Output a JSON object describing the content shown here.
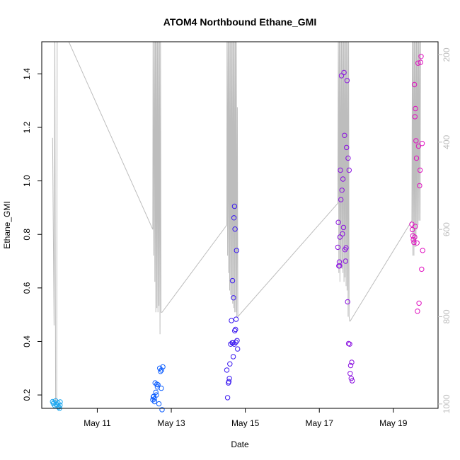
{
  "chart_data": {
    "type": "scatter",
    "title": "ATOM4 Northbound Ethane_GMI",
    "xlabel": "Date",
    "ylabel": "Ethane_GMI",
    "x_ticks": [
      "May 11",
      "May 13",
      "May 15",
      "May 17",
      "May 19"
    ],
    "y_ticks": [
      "0.2",
      "0.4",
      "0.6",
      "0.8",
      "1.0",
      "1.2",
      "1.4"
    ],
    "y2_ticks": [
      "200",
      "400",
      "600",
      "800",
      "1000"
    ],
    "y_left_range": [
      0.15,
      1.52
    ],
    "y_right_range": [
      1010,
      170
    ],
    "y_right_inverted": true,
    "x_range_days": [
      "May 09 12:00",
      "May 20 05:00"
    ],
    "grid": false,
    "point_style": "open-circle",
    "point_color_scale": [
      "#1ea8f0",
      "#1060ff",
      "#3a18f0",
      "#8a10e0",
      "#e010c0"
    ],
    "secondary_line_color": "#bdbdbd",
    "series": [
      {
        "flight_date": "May 10",
        "color": "#1ea8f0",
        "points": [
          [
            "May 09 19:00",
            0.175
          ],
          [
            "May 09 19:30",
            0.168
          ],
          [
            "May 09 20:00",
            0.172
          ],
          [
            "May 09 20:30",
            0.16
          ],
          [
            "May 09 21:00",
            0.178
          ],
          [
            "May 09 21:30",
            0.165
          ],
          [
            "May 09 22:00",
            0.158
          ],
          [
            "May 09 22:30",
            0.17
          ],
          [
            "May 09 23:00",
            0.155
          ],
          [
            "May 09 23:30",
            0.15
          ],
          [
            "May 09 23:50",
            0.162
          ],
          [
            "May 09 23:55",
            0.174
          ]
        ]
      },
      {
        "flight_date": "May 12",
        "color": "#1060ff",
        "points": [
          [
            "May 12 12:00",
            0.182
          ],
          [
            "May 12 12:20",
            0.193
          ],
          [
            "May 12 12:40",
            0.195
          ],
          [
            "May 12 13:00",
            0.185
          ],
          [
            "May 12 13:10",
            0.175
          ],
          [
            "May 12 13:30",
            0.245
          ],
          [
            "May 12 14:00",
            0.21
          ],
          [
            "May 12 14:20",
            0.2
          ],
          [
            "May 12 14:40",
            0.24
          ],
          [
            "May 12 15:00",
            0.23
          ],
          [
            "May 12 15:20",
            0.238
          ],
          [
            "May 12 16:00",
            0.167
          ],
          [
            "May 12 16:30",
            0.3
          ],
          [
            "May 12 17:00",
            0.288
          ],
          [
            "May 12 17:30",
            0.225
          ],
          [
            "May 12 18:00",
            0.145
          ],
          [
            "May 12 18:30",
            0.305
          ],
          [
            "May 12 17:40",
            0.293
          ]
        ]
      },
      {
        "flight_date": "May 14",
        "color": "#3a18f0",
        "points": [
          [
            "May 14 12:00",
            0.293
          ],
          [
            "May 14 12:30",
            0.19
          ],
          [
            "May 14 13:00",
            0.245
          ],
          [
            "May 14 13:20",
            0.25
          ],
          [
            "May 14 13:40",
            0.262
          ],
          [
            "May 14 14:00",
            0.316
          ],
          [
            "May 14 14:30",
            0.39
          ],
          [
            "May 14 15:00",
            0.478
          ],
          [
            "May 14 15:30",
            0.395
          ],
          [
            "May 14 16:00",
            0.395
          ],
          [
            "May 14 16:20",
            0.563
          ],
          [
            "May 14 16:40",
            0.862
          ],
          [
            "May 14 17:00",
            0.905
          ],
          [
            "May 14 17:20",
            0.82
          ],
          [
            "May 14 15:40",
            0.627
          ],
          [
            "May 14 17:40",
            0.445
          ],
          [
            "May 14 18:00",
            0.483
          ],
          [
            "May 14 18:20",
            0.74
          ],
          [
            "May 14 18:40",
            0.403
          ],
          [
            "May 14 19:00",
            0.372
          ],
          [
            "May 14 16:10",
            0.343
          ],
          [
            "May 14 16:50",
            0.39
          ],
          [
            "May 14 17:10",
            0.44
          ],
          [
            "May 14 17:50",
            0.397
          ]
        ]
      },
      {
        "flight_date": "May 17",
        "color": "#8a10e0",
        "points": [
          [
            "May 17 12:00",
            0.752
          ],
          [
            "May 17 12:20",
            0.845
          ],
          [
            "May 17 12:40",
            0.682
          ],
          [
            "May 17 13:00",
            0.697
          ],
          [
            "May 17 13:20",
            0.79
          ],
          [
            "May 17 13:40",
            1.04
          ],
          [
            "May 17 14:00",
            0.93
          ],
          [
            "May 17 14:20",
            1.393
          ],
          [
            "May 17 14:40",
            0.965
          ],
          [
            "May 17 15:00",
            0.802
          ],
          [
            "May 17 15:20",
            1.007
          ],
          [
            "May 17 15:40",
            0.826
          ],
          [
            "May 17 16:00",
            1.405
          ],
          [
            "May 17 16:20",
            1.17
          ],
          [
            "May 17 16:40",
            0.743
          ],
          [
            "May 17 17:00",
            0.7
          ],
          [
            "May 17 17:20",
            0.75
          ],
          [
            "May 17 17:40",
            1.125
          ],
          [
            "May 17 18:00",
            1.375
          ],
          [
            "May 17 18:20",
            0.548
          ],
          [
            "May 17 18:40",
            1.085
          ],
          [
            "May 17 19:00",
            0.392
          ],
          [
            "May 17 19:20",
            1.04
          ],
          [
            "May 17 19:40",
            0.39
          ],
          [
            "May 17 20:00",
            0.28
          ],
          [
            "May 17 20:20",
            0.31
          ],
          [
            "May 17 20:40",
            0.262
          ],
          [
            "May 17 21:00",
            0.322
          ],
          [
            "May 17 21:20",
            0.253
          ],
          [
            "May 17 13:10",
            0.682
          ]
        ]
      },
      {
        "flight_date": "May 19",
        "color": "#e010c0",
        "points": [
          [
            "May 19 12:00",
            0.838
          ],
          [
            "May 19 12:20",
            0.818
          ],
          [
            "May 19 12:40",
            0.795
          ],
          [
            "May 19 13:00",
            0.78
          ],
          [
            "May 19 13:20",
            0.77
          ],
          [
            "May 19 13:40",
            1.36
          ],
          [
            "May 19 14:00",
            1.24
          ],
          [
            "May 19 14:20",
            1.27
          ],
          [
            "May 19 14:40",
            1.15
          ],
          [
            "May 19 15:00",
            1.085
          ],
          [
            "May 19 15:20",
            0.768
          ],
          [
            "May 19 15:40",
            0.513
          ],
          [
            "May 19 16:00",
            1.44
          ],
          [
            "May 19 16:20",
            1.13
          ],
          [
            "May 19 16:40",
            0.543
          ],
          [
            "May 19 17:00",
            0.982
          ],
          [
            "May 19 17:20",
            1.04
          ],
          [
            "May 19 17:40",
            1.443
          ],
          [
            "May 19 18:00",
            1.465
          ],
          [
            "May 19 18:20",
            0.67
          ],
          [
            "May 19 18:40",
            1.14
          ],
          [
            "May 19 19:00",
            0.74
          ],
          [
            "May 19 13:50",
            0.79
          ],
          [
            "May 19 14:10",
            0.83
          ]
        ]
      }
    ],
    "altitude_profile": {
      "name": "",
      "color": "#bdbdbd",
      "points": [
        [
          "May 09 19:00",
          390
        ],
        [
          "May 09 20:00",
          820
        ],
        [
          "May 09 20:30",
          130
        ],
        [
          "May 09 21:00",
          1000
        ],
        [
          "May 09 21:40",
          1000
        ],
        [
          "May 09 22:00",
          150
        ],
        [
          "May 10 03:00",
          150
        ],
        [
          "May 12 12:00",
          600
        ],
        [
          "May 12 12:10",
          150
        ],
        [
          "May 12 12:30",
          660
        ],
        [
          "May 12 13:00",
          150
        ],
        [
          "May 12 13:20",
          720
        ],
        [
          "May 12 13:40",
          150
        ],
        [
          "May 12 14:00",
          790
        ],
        [
          "May 12 14:20",
          150
        ],
        [
          "May 12 14:40",
          780
        ],
        [
          "May 12 15:00",
          150
        ],
        [
          "May 12 15:20",
          790
        ],
        [
          "May 12 15:40",
          150
        ],
        [
          "May 12 16:00",
          775
        ],
        [
          "May 12 16:20",
          150
        ],
        [
          "May 12 16:40",
          840
        ],
        [
          "May 12 17:00",
          150
        ],
        [
          "May 12 17:20",
          790
        ],
        [
          "May 12 18:00",
          790
        ],
        [
          "May 14 12:00",
          590
        ],
        [
          "May 14 12:10",
          150
        ],
        [
          "May 14 12:30",
          660
        ],
        [
          "May 14 12:50",
          150
        ],
        [
          "May 14 13:10",
          700
        ],
        [
          "May 14 13:30",
          150
        ],
        [
          "May 14 13:50",
          740
        ],
        [
          "May 14 14:10",
          150
        ],
        [
          "May 14 14:30",
          750
        ],
        [
          "May 14 14:50",
          150
        ],
        [
          "May 14 15:10",
          760
        ],
        [
          "May 14 15:30",
          150
        ],
        [
          "May 14 15:50",
          770
        ],
        [
          "May 14 16:10",
          150
        ],
        [
          "May 14 16:30",
          780
        ],
        [
          "May 14 16:50",
          150
        ],
        [
          "May 14 17:10",
          790
        ],
        [
          "May 14 17:30",
          150
        ],
        [
          "May 14 17:50",
          790
        ],
        [
          "May 14 18:10",
          150
        ],
        [
          "May 14 18:30",
          800
        ],
        [
          "May 14 18:50",
          320
        ],
        [
          "May 14 19:10",
          800
        ],
        [
          "May 17 12:00",
          540
        ],
        [
          "May 17 12:20",
          150
        ],
        [
          "May 17 12:40",
          700
        ],
        [
          "May 17 13:00",
          150
        ],
        [
          "May 17 13:20",
          720
        ],
        [
          "May 17 13:40",
          150
        ],
        [
          "May 17 14:00",
          680
        ],
        [
          "May 17 14:20",
          150
        ],
        [
          "May 17 14:40",
          690
        ],
        [
          "May 17 15:00",
          150
        ],
        [
          "May 17 15:20",
          700
        ],
        [
          "May 17 15:40",
          150
        ],
        [
          "May 17 16:00",
          720
        ],
        [
          "May 17 16:20",
          150
        ],
        [
          "May 17 16:40",
          710
        ],
        [
          "May 17 17:00",
          150
        ],
        [
          "May 17 17:20",
          730
        ],
        [
          "May 17 17:40",
          150
        ],
        [
          "May 17 18:00",
          740
        ],
        [
          "May 17 18:20",
          150
        ],
        [
          "May 17 18:40",
          800
        ],
        [
          "May 17 19:00",
          150
        ],
        [
          "May 17 19:20",
          800
        ],
        [
          "May 17 19:40",
          810
        ],
        [
          "May 17 20:00",
          810
        ],
        [
          "May 19 12:00",
          580
        ],
        [
          "May 19 12:20",
          150
        ],
        [
          "May 19 12:40",
          660
        ],
        [
          "May 19 13:00",
          150
        ],
        [
          "May 19 13:20",
          660
        ],
        [
          "May 19 13:40",
          150
        ],
        [
          "May 19 14:00",
          640
        ],
        [
          "May 19 14:20",
          150
        ],
        [
          "May 19 14:40",
          640
        ],
        [
          "May 19 15:00",
          150
        ],
        [
          "May 19 15:20",
          600
        ],
        [
          "May 19 15:40",
          150
        ],
        [
          "May 19 16:00",
          590
        ],
        [
          "May 19 16:20",
          150
        ],
        [
          "May 19 16:40",
          580
        ],
        [
          "May 19 17:00",
          150
        ],
        [
          "May 19 17:20",
          580
        ],
        [
          "May 19 17:40",
          150
        ]
      ]
    }
  }
}
